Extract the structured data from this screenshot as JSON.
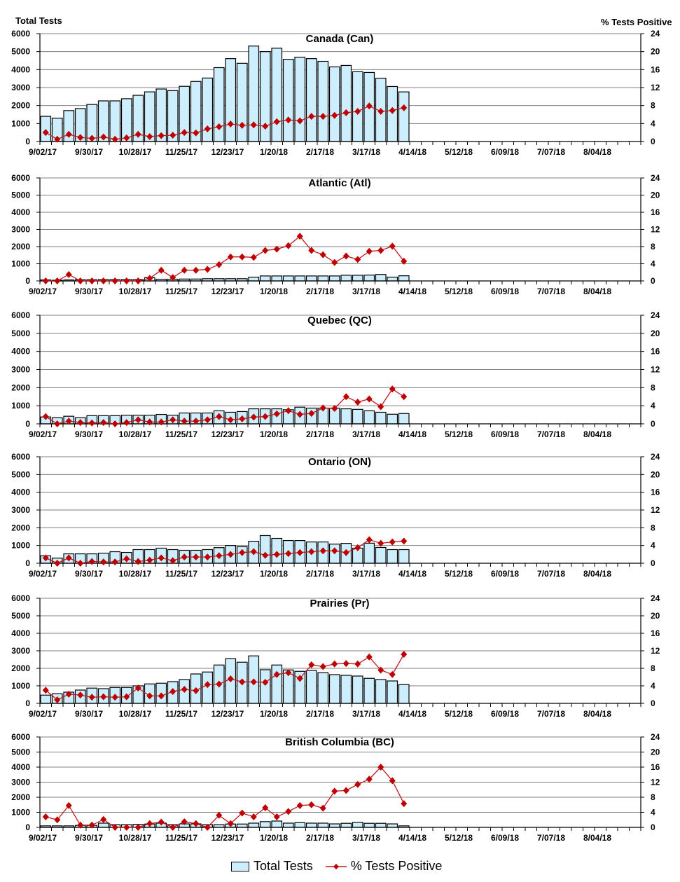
{
  "y_left_label": "Total Tests",
  "y_right_label": "% Tests Positive",
  "legend": {
    "bars": "Total Tests",
    "line": "% Tests Positive"
  },
  "colors": {
    "bar_fill": "#cdeefc",
    "bar_stroke": "#000000",
    "line": "#c0161f",
    "marker": "#c00000",
    "grid": "#808080"
  },
  "chart_data": [
    {
      "type": "bar+line",
      "title": "Canada (Can)",
      "ylim": [
        0,
        6000
      ],
      "y2lim": [
        0,
        24
      ],
      "grid": true,
      "x_ticks": [
        "9/02/17",
        "9/30/17",
        "10/28/17",
        "11/25/17",
        "12/23/17",
        "1/20/18",
        "2/17/18",
        "3/17/18",
        "4/14/18",
        "5/12/18",
        "6/09/18",
        "7/07/18",
        "8/04/18"
      ],
      "total_tests": [
        1400,
        1300,
        1720,
        1830,
        2060,
        2260,
        2260,
        2380,
        2570,
        2760,
        2920,
        2830,
        3070,
        3340,
        3530,
        4110,
        4610,
        4350,
        5310,
        5000,
        5190,
        4570,
        4690,
        4610,
        4460,
        4150,
        4230,
        3880,
        3840,
        3520,
        3060,
        2760
      ],
      "pct_positive": [
        2.0,
        0.5,
        1.6,
        0.9,
        0.7,
        1.0,
        0.5,
        0.8,
        1.6,
        1.1,
        1.3,
        1.4,
        2.0,
        1.9,
        2.8,
        3.3,
        3.9,
        3.6,
        3.7,
        3.4,
        4.4,
        4.8,
        4.6,
        5.6,
        5.6,
        5.8,
        6.4,
        6.7,
        7.9,
        6.7,
        6.9,
        7.5
      ]
    },
    {
      "type": "bar+line",
      "title": "Atlantic (Atl)",
      "ylim": [
        0,
        6000
      ],
      "y2lim": [
        0,
        24
      ],
      "grid": true,
      "x_ticks": [
        "9/02/17",
        "9/30/17",
        "10/28/17",
        "11/25/17",
        "12/23/17",
        "1/20/18",
        "2/17/18",
        "3/17/18",
        "4/14/18",
        "5/12/18",
        "6/09/18",
        "7/07/18",
        "8/04/18"
      ],
      "total_tests": [
        60,
        40,
        60,
        70,
        70,
        80,
        80,
        80,
        80,
        190,
        100,
        100,
        110,
        110,
        130,
        130,
        130,
        130,
        220,
        290,
        290,
        290,
        290,
        290,
        290,
        290,
        330,
        330,
        340,
        380,
        220,
        300
      ],
      "pct_positive": [
        0,
        0,
        1.5,
        0,
        0,
        0,
        0,
        0,
        0,
        0.6,
        2.5,
        0.8,
        2.5,
        2.5,
        2.7,
        3.8,
        5.6,
        5.6,
        5.5,
        7.1,
        7.4,
        8.2,
        10.4,
        7.1,
        6.1,
        4.3,
        5.8,
        5.0,
        6.9,
        7.1,
        8.1,
        4.6
      ]
    },
    {
      "type": "bar+line",
      "title": "Quebec (QC)",
      "ylim": [
        0,
        6000
      ],
      "y2lim": [
        0,
        24
      ],
      "grid": true,
      "x_ticks": [
        "9/02/17",
        "9/30/17",
        "10/28/17",
        "11/25/17",
        "12/23/17",
        "1/20/18",
        "2/17/18",
        "3/17/18",
        "4/14/18",
        "5/12/18",
        "6/09/18",
        "7/07/18",
        "8/04/18"
      ],
      "total_tests": [
        380,
        340,
        420,
        340,
        450,
        450,
        450,
        480,
        480,
        480,
        520,
        480,
        600,
        600,
        600,
        720,
        640,
        680,
        830,
        830,
        830,
        780,
        920,
        870,
        870,
        870,
        830,
        800,
        720,
        640,
        530,
        570
      ],
      "pct_positive": [
        1.6,
        0,
        0.6,
        0.3,
        0.2,
        0.3,
        0,
        0.3,
        0.9,
        0.4,
        0.4,
        0.9,
        0.6,
        0.6,
        0.9,
        1.6,
        0.9,
        1.1,
        1.5,
        1.6,
        2.2,
        2.9,
        2.1,
        2.3,
        3.5,
        3.4,
        6.0,
        4.8,
        5.5,
        3.8,
        7.7,
        6.0
      ]
    },
    {
      "type": "bar+line",
      "title": "Ontario (ON)",
      "ylim": [
        0,
        6000
      ],
      "y2lim": [
        0,
        24
      ],
      "grid": true,
      "x_ticks": [
        "9/02/17",
        "9/30/17",
        "10/28/17",
        "11/25/17",
        "12/23/17",
        "1/20/18",
        "2/17/18",
        "3/17/18",
        "4/14/18",
        "5/12/18",
        "6/09/18",
        "7/07/18",
        "8/04/18"
      ],
      "total_tests": [
        420,
        290,
        530,
        530,
        530,
        570,
        650,
        610,
        770,
        770,
        850,
        770,
        730,
        730,
        770,
        880,
        1000,
        930,
        1240,
        1560,
        1400,
        1280,
        1280,
        1200,
        1200,
        1080,
        1120,
        850,
        1130,
        890,
        770,
        770
      ],
      "pct_positive": [
        1.2,
        0,
        1.2,
        0,
        0.4,
        0.3,
        0.3,
        1.0,
        0.4,
        0.7,
        1.2,
        0.6,
        1.4,
        1.4,
        1.4,
        1.7,
        2.0,
        2.4,
        2.6,
        1.8,
        2.0,
        2.2,
        2.4,
        2.6,
        2.8,
        2.8,
        2.4,
        3.5,
        5.3,
        4.5,
        4.8,
        5.0
      ]
    },
    {
      "type": "bar+line",
      "title": "Prairies (Pr)",
      "ylim": [
        0,
        6000
      ],
      "y2lim": [
        0,
        24
      ],
      "grid": true,
      "x_ticks": [
        "9/02/17",
        "9/30/17",
        "10/28/17",
        "11/25/17",
        "12/23/17",
        "1/20/18",
        "2/17/18",
        "3/17/18",
        "4/14/18",
        "5/12/18",
        "6/09/18",
        "7/07/18",
        "8/04/18"
      ],
      "total_tests": [
        470,
        550,
        640,
        760,
        870,
        840,
        910,
        910,
        1000,
        1110,
        1150,
        1240,
        1360,
        1680,
        1790,
        2190,
        2550,
        2350,
        2710,
        1920,
        2190,
        1910,
        1830,
        1880,
        1750,
        1640,
        1600,
        1560,
        1430,
        1360,
        1280,
        1070
      ],
      "pct_positive": [
        3.0,
        0.8,
        2.1,
        1.9,
        1.4,
        1.5,
        1.4,
        1.5,
        3.5,
        1.7,
        1.7,
        2.7,
        3.2,
        2.9,
        4.3,
        4.4,
        5.6,
        4.9,
        4.9,
        4.8,
        6.6,
        7.0,
        5.7,
        8.8,
        8.4,
        9.0,
        9.1,
        9.0,
        10.6,
        7.6,
        6.6,
        11.2
      ]
    },
    {
      "type": "bar+line",
      "title": "British Columbia (BC)",
      "ylim": [
        0,
        6000
      ],
      "y2lim": [
        0,
        24
      ],
      "grid": true,
      "x_ticks": [
        "9/02/17",
        "9/30/17",
        "10/28/17",
        "11/25/17",
        "12/23/17",
        "1/20/18",
        "2/17/18",
        "3/17/18",
        "4/14/18",
        "5/12/18",
        "6/09/18",
        "7/07/18",
        "8/04/18"
      ],
      "total_tests": [
        100,
        100,
        100,
        130,
        130,
        280,
        180,
        180,
        200,
        220,
        280,
        180,
        230,
        230,
        180,
        180,
        220,
        220,
        280,
        380,
        420,
        280,
        310,
        280,
        280,
        230,
        270,
        330,
        270,
        270,
        230,
        100
      ],
      "pct_positive": [
        2.8,
        2.0,
        5.8,
        0.6,
        0.6,
        2.1,
        0,
        0,
        0,
        1.0,
        1.4,
        0,
        1.5,
        1.0,
        0,
        3.2,
        1.0,
        3.8,
        2.8,
        5.2,
        2.8,
        4.2,
        5.8,
        6.0,
        5.1,
        9.6,
        9.8,
        11.4,
        12.8,
        16.0,
        12.4,
        6.3
      ]
    }
  ]
}
